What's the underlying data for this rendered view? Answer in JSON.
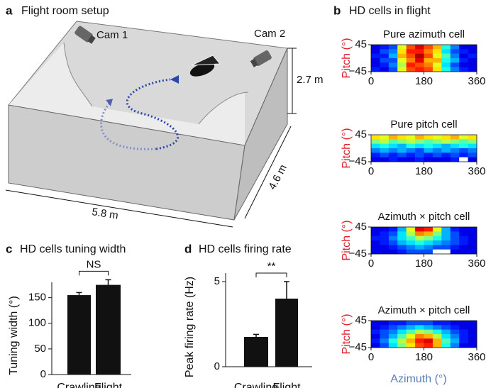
{
  "setup": {
    "letter": "a",
    "title": "Flight room setup",
    "cam1": "Cam 1",
    "cam2": "Cam 2",
    "height": "2.7 m",
    "depth": "4.6 m",
    "width": "5.8 m"
  },
  "heatmap_panel": {
    "letter": "b",
    "title": "HD cells in flight"
  },
  "chart_data": [
    {
      "type": "heatmap",
      "title": "Pure azimuth cell",
      "ylabel": "Pitch (°)",
      "colormap": "jet",
      "xlim": [
        0,
        360
      ],
      "xticks": [
        0,
        180,
        360
      ],
      "ylim": [
        -45,
        45
      ],
      "yticks": [
        45,
        {
          "value": -45,
          "label": "−45"
        }
      ],
      "values": [
        [
          0.1,
          0.15,
          0.2,
          0.6,
          0.8,
          0.9,
          0.8,
          0.7,
          0.4,
          0.25,
          0.1,
          0.1
        ],
        [
          0.1,
          0.2,
          0.25,
          0.65,
          0.85,
          0.85,
          0.75,
          0.65,
          0.35,
          0.2,
          0.15,
          0.1
        ],
        [
          0.15,
          0.15,
          0.3,
          0.7,
          0.8,
          0.95,
          0.8,
          0.6,
          0.45,
          0.25,
          0.1,
          0.15
        ],
        [
          0.1,
          0.2,
          0.2,
          0.6,
          0.75,
          0.9,
          0.7,
          0.7,
          0.4,
          0.3,
          0.15,
          0.1
        ],
        [
          0.1,
          0.15,
          0.25,
          0.55,
          0.85,
          0.8,
          0.75,
          0.6,
          0.35,
          0.2,
          0.1,
          0.1
        ],
        [
          0.15,
          0.1,
          0.2,
          0.6,
          0.8,
          0.85,
          0.8,
          0.65,
          0.4,
          0.25,
          0.15,
          0.1
        ]
      ]
    },
    {
      "type": "heatmap",
      "title": "Pure pitch cell",
      "ylabel": "Pitch (°)",
      "colormap": "jet",
      "xlim": [
        0,
        360
      ],
      "xticks": [
        0,
        180,
        360
      ],
      "ylim": [
        -45,
        45
      ],
      "yticks": [
        45,
        {
          "value": -45,
          "label": "−45"
        }
      ],
      "values": [
        [
          0.65,
          0.6,
          0.7,
          0.65,
          0.6,
          0.7,
          0.65,
          0.6,
          0.65,
          0.7,
          0.6,
          0.65
        ],
        [
          0.5,
          0.55,
          0.45,
          0.5,
          0.55,
          0.5,
          0.45,
          0.5,
          0.55,
          0.5,
          0.45,
          0.5
        ],
        [
          0.35,
          0.4,
          0.35,
          0.3,
          0.4,
          0.35,
          0.4,
          0.35,
          0.3,
          0.35,
          0.4,
          0.35
        ],
        [
          0.25,
          0.3,
          0.25,
          0.3,
          0.25,
          0.2,
          0.3,
          0.25,
          0.3,
          0.25,
          0.2,
          0.25
        ],
        [
          0.15,
          0.2,
          0.15,
          0.2,
          0.15,
          0.2,
          0.15,
          0.2,
          0.15,
          0.2,
          0.15,
          0.2
        ],
        [
          0.1,
          0.1,
          0.15,
          0.1,
          0.1,
          0.15,
          0.1,
          0.1,
          0.1,
          0.15,
          null,
          0.1
        ]
      ]
    },
    {
      "type": "heatmap",
      "title": "Azimuth × pitch cell",
      "ylabel": "Pitch (°)",
      "colormap": "jet",
      "xlim": [
        0,
        360
      ],
      "xticks": [
        0,
        180,
        360
      ],
      "ylim": [
        -45,
        45
      ],
      "yticks": [
        45,
        {
          "value": -45,
          "label": "−45"
        }
      ],
      "values": [
        [
          0.1,
          0.1,
          0.15,
          0.3,
          0.6,
          0.9,
          0.85,
          0.6,
          0.3,
          0.15,
          0.1,
          0.1
        ],
        [
          0.1,
          0.15,
          0.2,
          0.35,
          0.55,
          0.75,
          0.7,
          0.5,
          0.3,
          0.2,
          0.1,
          0.1
        ],
        [
          0.15,
          0.15,
          0.25,
          0.35,
          0.45,
          0.55,
          0.5,
          0.4,
          0.3,
          0.2,
          0.15,
          0.1
        ],
        [
          0.1,
          0.15,
          0.2,
          0.3,
          0.35,
          0.4,
          0.35,
          0.3,
          0.25,
          0.2,
          0.15,
          0.1
        ],
        [
          0.1,
          0.1,
          0.15,
          0.2,
          0.25,
          0.3,
          0.25,
          0.2,
          0.2,
          0.15,
          0.1,
          0.1
        ],
        [
          0.1,
          0.1,
          0.1,
          0.15,
          0.2,
          0.2,
          0.2,
          null,
          null,
          0.1,
          0.1,
          0.1
        ]
      ]
    },
    {
      "type": "heatmap",
      "title": "Azimuth × pitch cell",
      "ylabel": "Pitch (°)",
      "xlabel": "Azimuth (°)",
      "colormap": "jet",
      "xlim": [
        0,
        360
      ],
      "xticks": [
        0,
        180,
        360
      ],
      "ylim": [
        -45,
        45
      ],
      "yticks": [
        45,
        {
          "value": -45,
          "label": "−45"
        }
      ],
      "values": [
        [
          0.1,
          0.1,
          0.15,
          0.15,
          0.2,
          0.2,
          0.2,
          0.15,
          0.15,
          0.1,
          0.1,
          0.1
        ],
        [
          0.1,
          0.15,
          0.2,
          0.25,
          0.3,
          0.35,
          0.3,
          0.25,
          0.2,
          0.15,
          0.1,
          0.1
        ],
        [
          0.15,
          0.2,
          0.25,
          0.35,
          0.45,
          0.55,
          0.5,
          0.4,
          0.3,
          0.2,
          0.15,
          0.1
        ],
        [
          0.1,
          0.2,
          0.3,
          0.45,
          0.6,
          0.75,
          0.7,
          0.55,
          0.35,
          0.25,
          0.15,
          0.1
        ],
        [
          0.15,
          0.25,
          0.4,
          0.55,
          0.7,
          0.85,
          0.9,
          0.7,
          0.45,
          0.3,
          0.15,
          0.1
        ],
        [
          0.1,
          0.2,
          0.35,
          0.5,
          0.65,
          0.8,
          0.85,
          0.7,
          0.4,
          0.25,
          0.1,
          0.1
        ]
      ]
    },
    {
      "type": "bar",
      "panel": "c",
      "title": "HD cells tuning width",
      "ylabel": "Tuning width (°)",
      "color": "#111111",
      "categories": [
        "Crawling",
        "Flight"
      ],
      "values": [
        155,
        175
      ],
      "errors": [
        5,
        10
      ],
      "ylim": [
        0,
        180
      ],
      "yticks": [
        0,
        50,
        100,
        150
      ],
      "annotation": "NS"
    },
    {
      "type": "bar",
      "panel": "d",
      "title": "HD cells firing rate",
      "ylabel": "Peak firing rate (Hz)",
      "color": "#111111",
      "categories": [
        "Crawling",
        "Flight"
      ],
      "values": [
        1.75,
        4.0
      ],
      "errors": [
        0.15,
        1.0
      ],
      "ylim": [
        0,
        5.5
      ],
      "yticks": [
        0,
        5
      ],
      "annotation": "**"
    }
  ]
}
